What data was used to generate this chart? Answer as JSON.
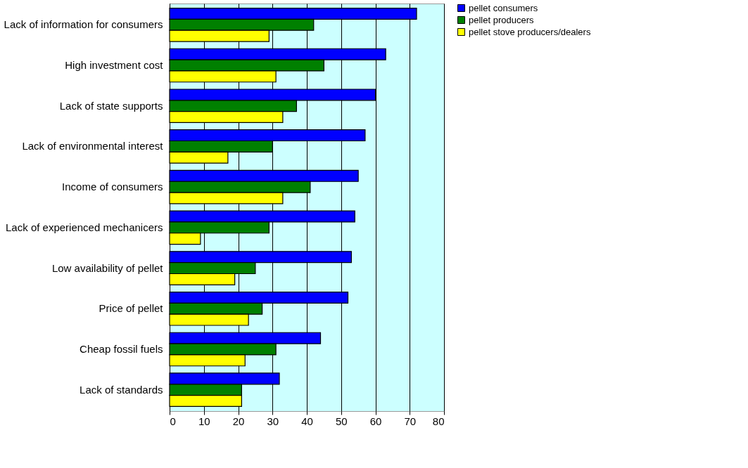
{
  "chart_data": {
    "type": "bar",
    "orientation": "horizontal",
    "categories": [
      "Lack of information for consumers",
      "High investment cost",
      "Lack of state supports",
      "Lack of environmental interest",
      "Income of consumers",
      "Lack of experienced mechanicers",
      "Low availability of pellet",
      "Price of pellet",
      "Cheap fossil fuels",
      "Lack of standards"
    ],
    "series": [
      {
        "name": "pellet consumers",
        "color": "#0000ff",
        "values": [
          72,
          63,
          60,
          57,
          55,
          54,
          53,
          52,
          44,
          32
        ]
      },
      {
        "name": "pellet producers",
        "color": "#008000",
        "values": [
          42,
          45,
          37,
          30,
          41,
          29,
          25,
          27,
          31,
          21
        ]
      },
      {
        "name": "pellet stove producers/dealers",
        "color": "#ffff00",
        "values": [
          29,
          31,
          33,
          17,
          33,
          9,
          19,
          23,
          22,
          21
        ]
      }
    ],
    "xlim": [
      0,
      80
    ],
    "xticks": [
      0,
      10,
      20,
      30,
      40,
      50,
      60,
      70,
      80
    ],
    "grid": "x",
    "legend": "right"
  }
}
